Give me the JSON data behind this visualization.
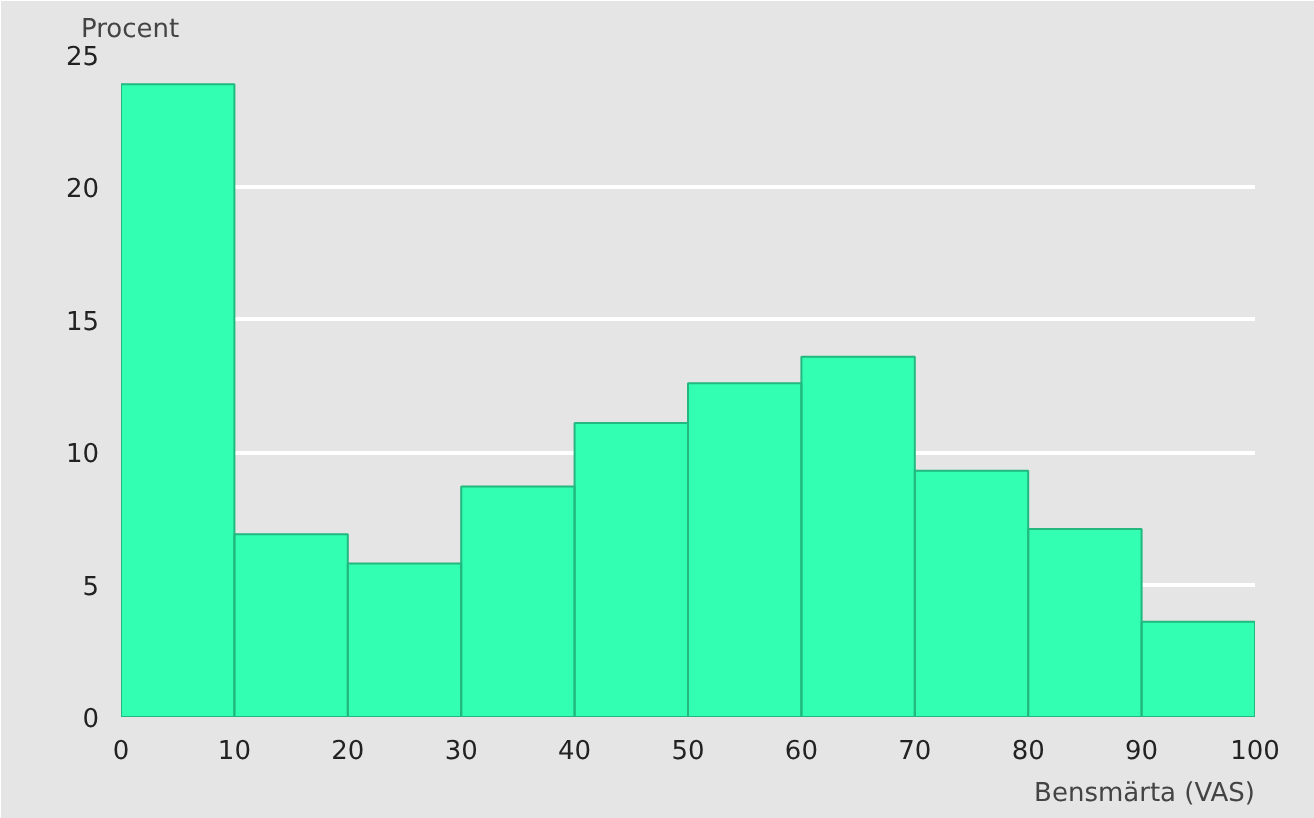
{
  "chart_data": {
    "type": "histogram",
    "ylabel": "Procent",
    "xlabel": "Bensmärta (VAS)",
    "bins": [
      0,
      10,
      20,
      30,
      40,
      50,
      60,
      70,
      80,
      90,
      100
    ],
    "values": [
      23.9,
      6.9,
      5.8,
      8.7,
      11.1,
      12.6,
      13.6,
      9.3,
      7.1,
      3.6
    ],
    "color": "#33ffb3",
    "xlim": [
      0,
      100
    ],
    "xticks": [
      0,
      10,
      20,
      30,
      40,
      50,
      60,
      70,
      80,
      90,
      100
    ],
    "ylim": [
      0,
      25
    ],
    "yticks": [
      0,
      5,
      10,
      15,
      20,
      25
    ],
    "grid": "y"
  }
}
